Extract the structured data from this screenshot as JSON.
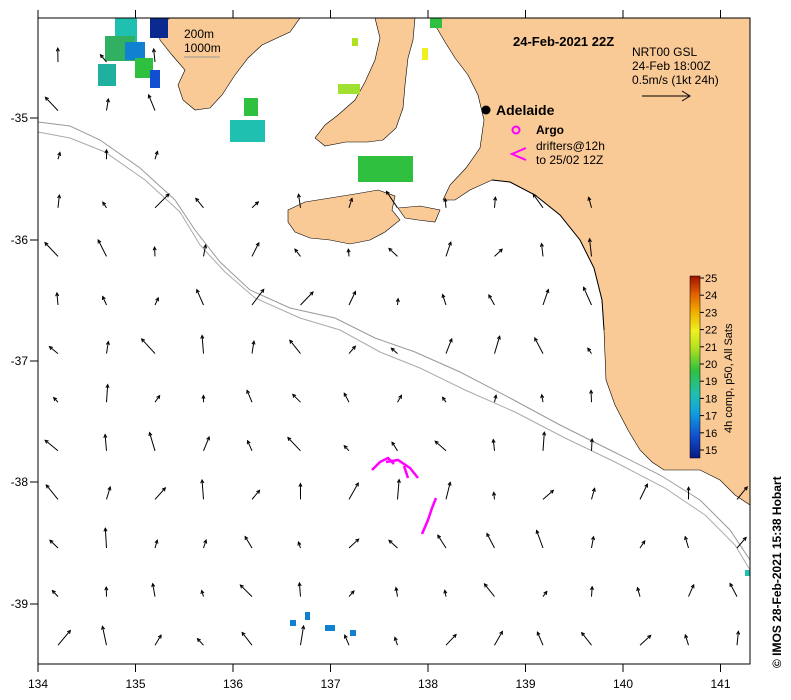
{
  "map": {
    "title": "24-Feb-2021 22Z",
    "place_label": "Adelaide",
    "depth_labels": [
      "200m",
      "1000m"
    ],
    "product_lines": [
      "NRT00 GSL",
      "24-Feb 18:00Z",
      "0.5m/s (1kt 24h)"
    ],
    "legend_argo": "Argo",
    "legend_drifters": [
      "drifters@12h",
      "to 25/02 12Z"
    ],
    "colorbar_title": "4h comp, p50, All Sats",
    "colorbar_ticks": [
      "25",
      "24",
      "23",
      "22",
      "21",
      "20",
      "19",
      "18",
      "17",
      "16",
      "15"
    ],
    "credit": "© IMOS 28-Feb-2021 15:38 Hobart",
    "land_color": "#f9c996",
    "arg_color": "#ff00ff",
    "lon_ticks": [
      "134",
      "135",
      "136",
      "137",
      "138",
      "139",
      "140",
      "141"
    ],
    "lat_ticks": [
      "-35",
      "-36",
      "-37",
      "-38",
      "-39"
    ]
  }
}
